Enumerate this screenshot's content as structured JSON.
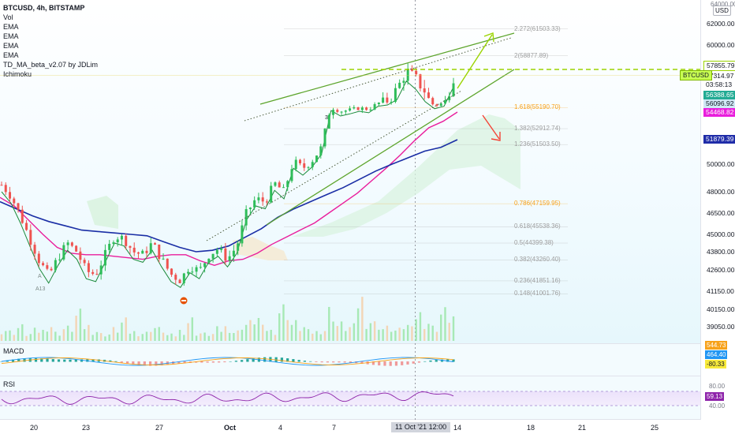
{
  "header": {
    "symbol_line": "BTCUSD, 4h, BITSTAMP",
    "indicators": [
      "Vol",
      "EMA",
      "EMA",
      "EMA",
      "EMA",
      "TD_MA_beta_v2.07 by JDLim",
      "Ichimoku"
    ]
  },
  "currency": "USD",
  "axis_top_label": "64000.00",
  "price_axis": {
    "ticks": [
      "62000.00",
      "60000.00",
      "50000.00",
      "48000.00",
      "46500.00",
      "45000.00",
      "43800.00",
      "42600.00",
      "41150.00",
      "40150.00",
      "39050.00"
    ],
    "tick_values": [
      62000,
      60000,
      50000,
      48000,
      46500,
      45000,
      43800,
      42600,
      41150,
      40150,
      39050
    ]
  },
  "price_tags": [
    {
      "text": "57855.79",
      "value": 57855.79,
      "bg": "#ffffff",
      "fg": "#131722",
      "border": "#9bd400"
    },
    {
      "text": "57314.97",
      "value": 57314.97,
      "bg": "#ffffff",
      "fg": "#131722",
      "border": ""
    },
    {
      "text": "03:58:13",
      "value": 57020,
      "bg": "#ffffff",
      "fg": "#131722",
      "border": ""
    },
    {
      "text": "56388.65",
      "value": 56388.65,
      "bg": "#22ab94",
      "fg": "#ffffff",
      "border": ""
    },
    {
      "text": "56096.92",
      "value": 56096.92,
      "bg": "#cfe8f5",
      "fg": "#131722",
      "border": ""
    },
    {
      "text": "54468.82",
      "value": 54468.82,
      "bg": "#e91edc",
      "fg": "#ffffff",
      "border": ""
    },
    {
      "text": "51879.39",
      "value": 51879.39,
      "bg": "#1f2ca8",
      "fg": "#ffffff",
      "border": ""
    }
  ],
  "symbol_tag": "BTCUSD",
  "fib_levels": [
    {
      "label": "2.272(61503.33)",
      "value": 61503.33,
      "color": "#9e9e9e"
    },
    {
      "label": "2(58877.89)",
      "value": 58877.89,
      "color": "#9e9e9e"
    },
    {
      "label": "1.618(55190.70)",
      "value": 55190.7,
      "color": "#f7a21b"
    },
    {
      "label": "1.382(52912.74)",
      "value": 52912.74,
      "color": "#9e9e9e"
    },
    {
      "label": "1.236(51503.50)",
      "value": 51503.5,
      "color": "#9e9e9e"
    },
    {
      "label": "0.786(47159.95)",
      "value": 47159.95,
      "color": "#f7a21b"
    },
    {
      "label": "0.618(45538.36)",
      "value": 45538.36,
      "color": "#9e9e9e"
    },
    {
      "label": "0.5(44399.38)",
      "value": 44399.38,
      "color": "#9e9e9e"
    },
    {
      "label": "0.382(43260.40)",
      "value": 43260.4,
      "color": "#9e9e9e"
    },
    {
      "label": "0.236(41851.16)",
      "value": 41851.16,
      "color": "#9e9e9e"
    },
    {
      "label": "0.148(41001.76)",
      "value": 41001.76,
      "color": "#9e9e9e"
    }
  ],
  "annotations": {
    "a13": "A13",
    "marker_3": "3",
    "marker_a": "A"
  },
  "macd": {
    "label": "MACD",
    "values": [
      "544.73",
      "464.40",
      "-80.33"
    ],
    "colors": [
      "#f7a21b",
      "#2196f3",
      "#f7ea3b"
    ]
  },
  "rsi": {
    "label": "RSI",
    "ticks": [
      "80.00",
      "40.00"
    ],
    "value": "59.13",
    "color": "#8e24aa"
  },
  "time_axis": {
    "labels": [
      "20",
      "23",
      "27",
      "Oct",
      "4",
      "7",
      "14",
      "18",
      "21",
      "25"
    ],
    "crosshair_label": "11 Oct '21   12:00"
  },
  "colors": {
    "up": "#2ebd59",
    "down": "#ef5350",
    "ema_pink": "#e91e9c",
    "ema_blue": "#1a2ea5",
    "trend_green": "#5da52c",
    "arrow_green": "#9bd400",
    "arrow_red": "#f44336"
  },
  "chart_data": {
    "type": "candlestick",
    "title": "BTCUSD, 4h, BITSTAMP",
    "x_axis_labels": [
      "20",
      "23",
      "27",
      "Oct",
      "4",
      "7",
      "14",
      "18",
      "21",
      "25"
    ],
    "ylim": [
      38500,
      64000
    ],
    "close_path": [
      48500,
      47700,
      46300,
      44700,
      43200,
      42200,
      43400,
      44400,
      43800,
      42500,
      42300,
      43600,
      44900,
      44700,
      43800,
      43600,
      44400,
      43300,
      42300,
      41900,
      42900,
      42500,
      43600,
      44000,
      43300,
      44200,
      46500,
      47500,
      47300,
      48600,
      48000,
      50200,
      49700,
      50300,
      51300,
      55200,
      54600,
      54800,
      55100,
      54900,
      55900,
      56100,
      56700,
      57600,
      57200,
      56600,
      55500,
      55900,
      57315
    ],
    "series": [
      {
        "name": "BTCUSD",
        "values": [
          48500,
          47700,
          46300,
          44700,
          43200,
          42200,
          43400,
          44400,
          43800,
          42500,
          42300,
          43600,
          44900,
          44700,
          43800,
          43600,
          44400,
          43300,
          42300,
          41900,
          42900,
          42500,
          43600,
          44000,
          43300,
          44200,
          46500,
          47500,
          47300,
          48600,
          48000,
          50200,
          49700,
          50300,
          51300,
          55200,
          54600,
          54800,
          55100,
          54900,
          55900,
          56100,
          56700,
          57600,
          57200,
          56600,
          55500,
          55900,
          57315
        ]
      },
      {
        "name": "EMA",
        "values": [
          47600,
          47000,
          46000,
          45000,
          44100,
          43700,
          43600,
          43600,
          43500,
          43400,
          43300,
          43500,
          43600,
          43600,
          43200,
          42900,
          43200,
          43300,
          43700,
          44300,
          44800,
          45300,
          45800,
          46500,
          47200,
          47900,
          48800,
          49700,
          50700,
          51800,
          53000,
          53600,
          54469
        ]
      },
      {
        "name": "EMA",
        "values": [
          47300,
          46800,
          46300,
          45900,
          45600,
          45300,
          45200,
          45100,
          45000,
          44900,
          44500,
          44100,
          43800,
          43900,
          44200,
          44800,
          45400,
          46200,
          46800,
          47300,
          47800,
          48300,
          48900,
          49500,
          50000,
          50500,
          51000,
          51300,
          51879
        ]
      }
    ],
    "volume": [
      1.0,
      0.8,
      1.2,
      0.6,
      0.9,
      1.4,
      0.7,
      1.1,
      2.2,
      1.3,
      0.9,
      0.6,
      1.0,
      1.6,
      0.8,
      0.7,
      1.2,
      1.0,
      0.5,
      0.9,
      1.8,
      0.7,
      0.6,
      1.0,
      1.2,
      0.8,
      1.5,
      2.0,
      1.1,
      0.9,
      2.8,
      1.5,
      1.2,
      0.8,
      1.0,
      2.6,
      1.4,
      1.2,
      3.6,
      1.8,
      1.5,
      1.1,
      0.9,
      1.3,
      2.2,
      1.6,
      1.1,
      2.3,
      2.0
    ]
  }
}
